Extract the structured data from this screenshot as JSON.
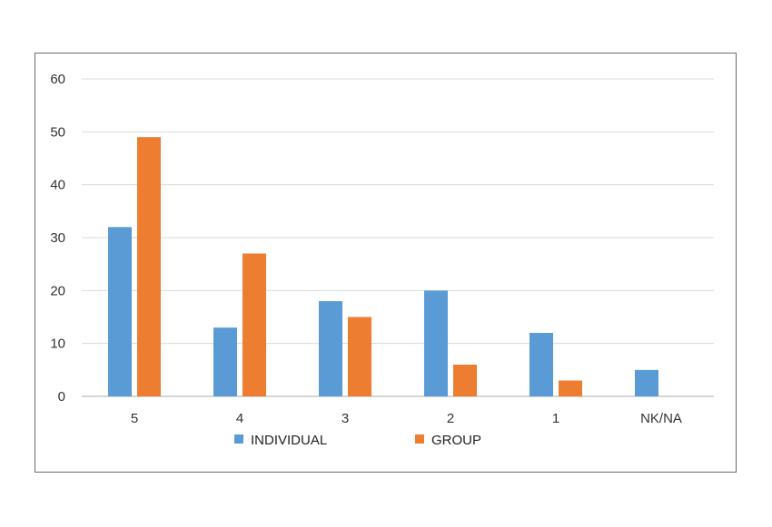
{
  "chart_data": {
    "type": "bar",
    "categories": [
      "5",
      "4",
      "3",
      "2",
      "1",
      "NK/NA"
    ],
    "series": [
      {
        "name": "INDIVIDUAL",
        "color": "#5b9bd5",
        "values": [
          32,
          13,
          18,
          20,
          12,
          5
        ]
      },
      {
        "name": "GROUP",
        "color": "#ed7d31",
        "values": [
          49,
          27,
          15,
          6,
          3,
          0
        ]
      }
    ],
    "ylim": [
      0,
      60
    ],
    "yticks": [
      0,
      10,
      20,
      30,
      40,
      50,
      60
    ],
    "grid": true,
    "legend_position": "bottom"
  }
}
